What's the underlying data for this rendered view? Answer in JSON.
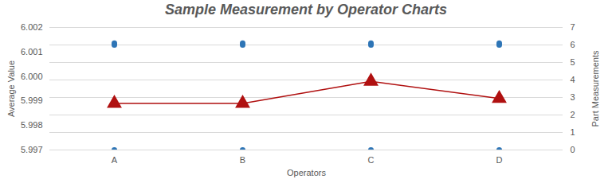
{
  "chart_data": {
    "type": "combo",
    "title": "Sample Measurement by Operator Charts",
    "x_label": "Operators",
    "y_label": "Average Value",
    "y2_label": "Part Measurements",
    "categories": [
      "A",
      "B",
      "C",
      "D"
    ],
    "ylim": [
      5.997,
      6.002
    ],
    "yticks": [
      5.997,
      5.998,
      5.999,
      {
        "value": 6,
        "label": "6.000"
      },
      6.001,
      6.002
    ],
    "y2lim": [
      0,
      7
    ],
    "y2ticks": [
      0,
      1,
      2,
      3,
      4,
      5,
      6,
      7
    ],
    "grid": true,
    "series": [
      {
        "name": "Average Value",
        "type": "line",
        "color": "#b01010",
        "marker": "triangle",
        "values": [
          5.9989,
          5.9989,
          5.9998,
          5.9991
        ]
      },
      {
        "name": "Part Measurements",
        "type": "scatter",
        "axis": "y2",
        "color": "#2e75b6",
        "marker": "circle",
        "x": [
          "A",
          "A",
          "A",
          "B",
          "B",
          "B",
          "C",
          "C",
          "C",
          "D",
          "D",
          "D"
        ],
        "values": [
          6.1,
          6.0,
          0,
          6.1,
          6.0,
          0,
          6.1,
          6.0,
          0,
          6.1,
          6.0,
          0
        ]
      }
    ]
  }
}
